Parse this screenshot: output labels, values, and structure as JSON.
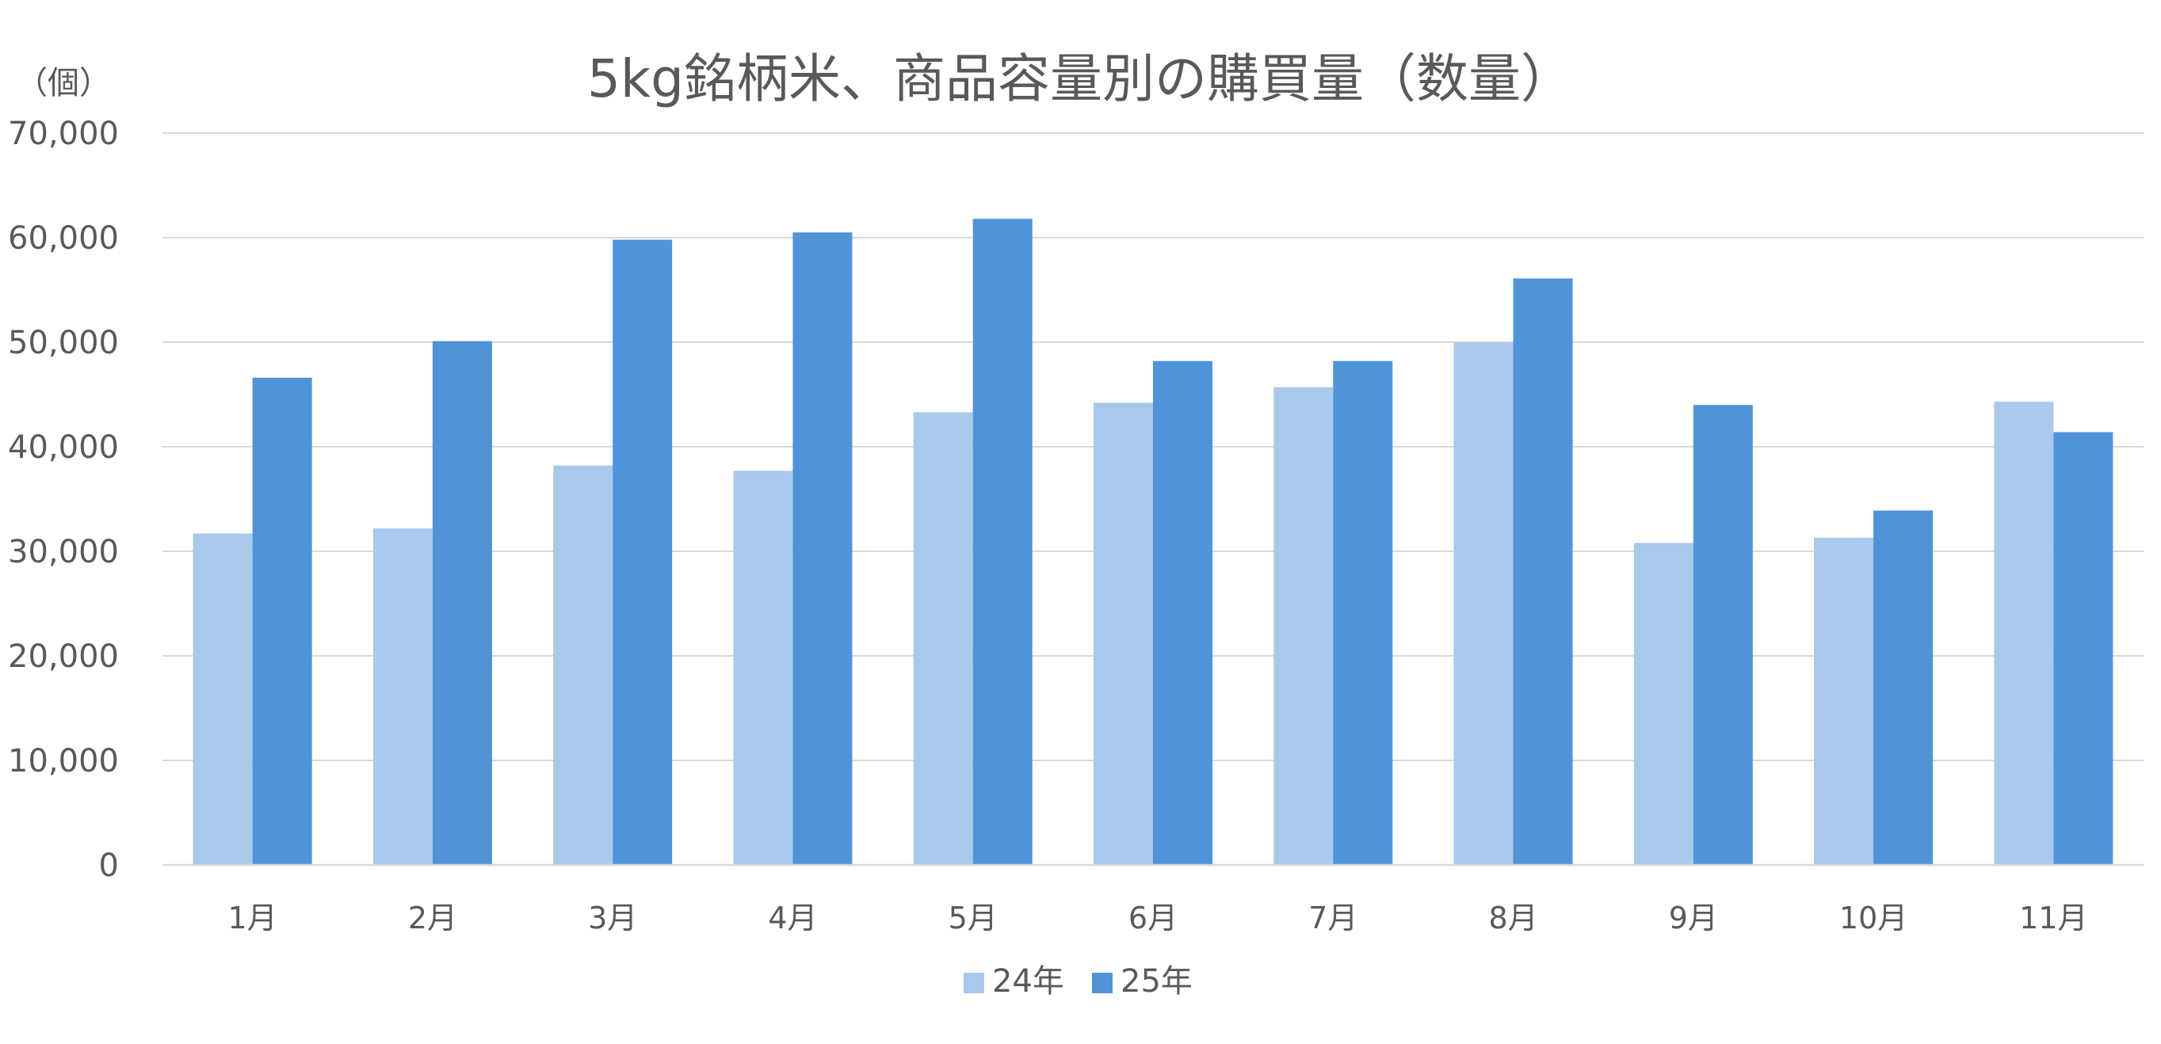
{
  "chart_data": {
    "type": "bar",
    "title": "5kg銘柄米、商品容量別の購買量（数量）",
    "unit_label": "（個）",
    "categories": [
      "1月",
      "2月",
      "3月",
      "4月",
      "5月",
      "6月",
      "7月",
      "8月",
      "9月",
      "10月",
      "11月"
    ],
    "series": [
      {
        "name": "24年",
        "color": "#a8c9ec",
        "values": [
          31700,
          32200,
          38200,
          37700,
          43300,
          44200,
          45700,
          50000,
          30800,
          31300,
          44300
        ]
      },
      {
        "name": "25年",
        "color": "#4f94d9",
        "values": [
          46600,
          50100,
          59800,
          60500,
          61800,
          48200,
          48200,
          56100,
          44000,
          33900,
          41400
        ]
      }
    ],
    "ylim": [
      0,
      70000
    ],
    "yticks": [
      0,
      10000,
      20000,
      30000,
      40000,
      50000,
      60000,
      70000
    ],
    "ytick_labels": [
      "0",
      "10,000",
      "20,000",
      "30,000",
      "40,000",
      "50,000",
      "60,000",
      "70,000"
    ],
    "grid": true,
    "legend_position": "bottom",
    "xlabel": "",
    "ylabel": ""
  }
}
